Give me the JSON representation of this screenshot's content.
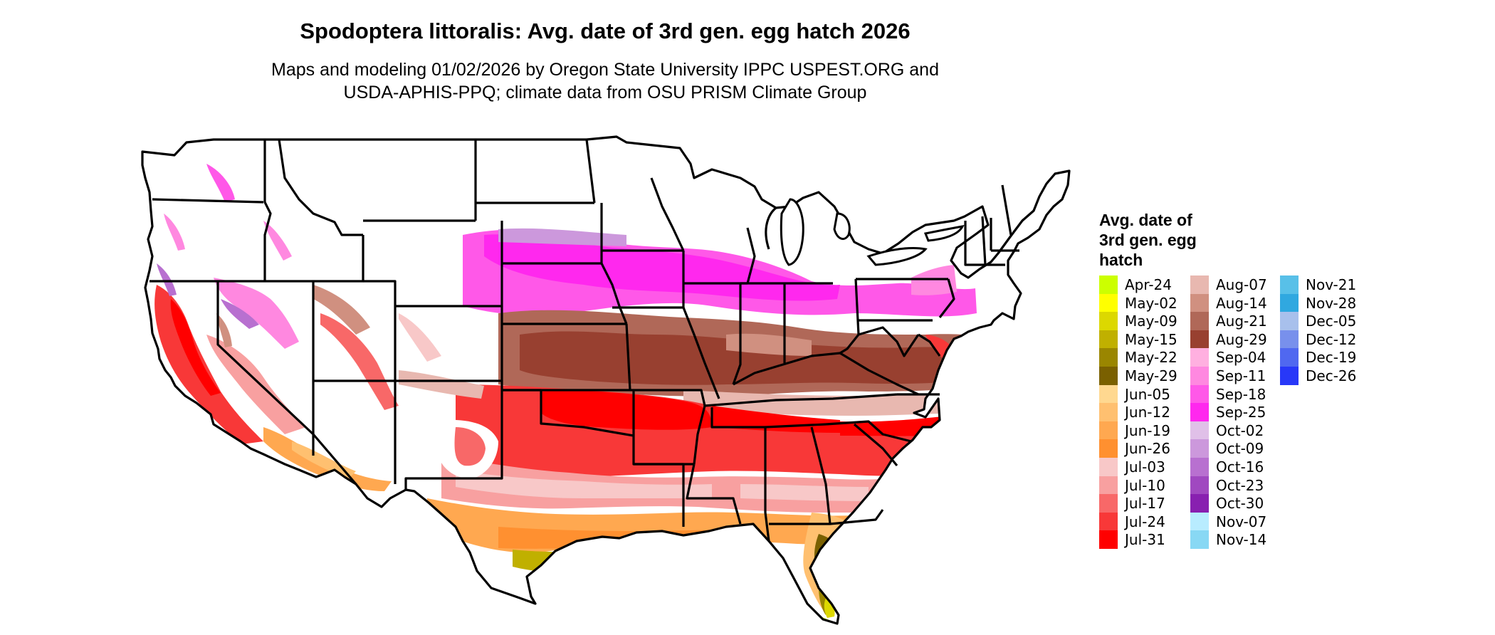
{
  "title": "Spodoptera littoralis: Avg. date of 3rd gen. egg hatch 2026",
  "subtitle_lines": [
    "Maps and modeling 01/02/2026 by Oregon State University IPPC USPEST.ORG and",
    "USDA-APHIS-PPQ; climate data from OSU PRISM Climate Group"
  ],
  "legend": {
    "title_lines": [
      "Avg. date of",
      "3rd gen. egg",
      "hatch"
    ],
    "columns": [
      [
        {
          "label": "Apr-24",
          "color": "#ccff00"
        },
        {
          "label": "May-02",
          "color": "#ffff00"
        },
        {
          "label": "May-09",
          "color": "#dcd800"
        },
        {
          "label": "May-15",
          "color": "#c0b000"
        },
        {
          "label": "May-22",
          "color": "#9a8600"
        },
        {
          "label": "May-29",
          "color": "#7a6000"
        },
        {
          "label": "Jun-05",
          "color": "#ffd890"
        },
        {
          "label": "Jun-12",
          "color": "#ffc070"
        },
        {
          "label": "Jun-19",
          "color": "#ffa850"
        },
        {
          "label": "Jun-26",
          "color": "#ff9030"
        },
        {
          "label": "Jul-03",
          "color": "#f8c8c8"
        },
        {
          "label": "Jul-10",
          "color": "#f8a0a0"
        },
        {
          "label": "Jul-17",
          "color": "#f86868"
        },
        {
          "label": "Jul-24",
          "color": "#f83838"
        },
        {
          "label": "Jul-31",
          "color": "#ff0000"
        }
      ],
      [
        {
          "label": "Aug-07",
          "color": "#e8b8b0"
        },
        {
          "label": "Aug-14",
          "color": "#d09080"
        },
        {
          "label": "Aug-21",
          "color": "#b06858"
        },
        {
          "label": "Aug-29",
          "color": "#984030"
        },
        {
          "label": "Sep-04",
          "color": "#ffb0e0"
        },
        {
          "label": "Sep-11",
          "color": "#ff88e0"
        },
        {
          "label": "Sep-18",
          "color": "#ff58e8"
        },
        {
          "label": "Sep-25",
          "color": "#ff28ee"
        },
        {
          "label": "Oct-02",
          "color": "#e0c0e8"
        },
        {
          "label": "Oct-09",
          "color": "#cc98dc"
        },
        {
          "label": "Oct-16",
          "color": "#b870d0"
        },
        {
          "label": "Oct-23",
          "color": "#a048c0"
        },
        {
          "label": "Oct-30",
          "color": "#8820b0"
        },
        {
          "label": "Nov-07",
          "color": "#b8ecff"
        },
        {
          "label": "Nov-14",
          "color": "#88d8f4"
        }
      ],
      [
        {
          "label": "Nov-21",
          "color": "#58c0e8"
        },
        {
          "label": "Nov-28",
          "color": "#30a8e0"
        },
        {
          "label": "Dec-05",
          "color": "#a8c0ec"
        },
        {
          "label": "Dec-12",
          "color": "#7890ec"
        },
        {
          "label": "Dec-19",
          "color": "#5068f0"
        },
        {
          "label": "Dec-26",
          "color": "#2838f8"
        }
      ]
    ]
  }
}
